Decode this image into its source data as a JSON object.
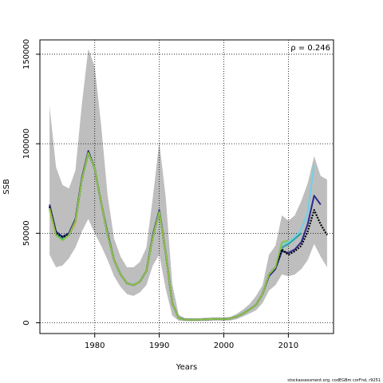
{
  "chart_data": {
    "type": "line",
    "xlabel": "Years",
    "ylabel": "SSB",
    "xlim": [
      1971.5,
      2017
    ],
    "ylim": [
      -6000,
      158000
    ],
    "x_ticks": [
      1980,
      1990,
      2000,
      2010
    ],
    "y_ticks": [
      0,
      50000,
      100000,
      150000
    ],
    "grid": "dotted",
    "annotation": "ρ = 0.246",
    "annotation_position": "top-right",
    "credit": "stockassessment.org, codEGBm corFnd, r9251",
    "band": {
      "color": "#bebebe",
      "years": [
        1973,
        1974,
        1975,
        1976,
        1977,
        1978,
        1979,
        1980,
        1981,
        1982,
        1983,
        1984,
        1985,
        1986,
        1987,
        1988,
        1989,
        1990,
        1991,
        1992,
        1993,
        1994,
        1995,
        1996,
        1997,
        1998,
        1999,
        2000,
        2001,
        2002,
        2003,
        2004,
        2005,
        2006,
        2007,
        2008,
        2009,
        2010,
        2011,
        2012,
        2013,
        2014,
        2015,
        2016
      ],
      "upper": [
        121000,
        87000,
        77000,
        75000,
        85000,
        122000,
        153000,
        143000,
        110000,
        71000,
        47000,
        37000,
        31000,
        31000,
        34000,
        42000,
        70000,
        101000,
        70000,
        22000,
        4500,
        2600,
        2600,
        2600,
        2800,
        3000,
        3000,
        3000,
        3300,
        5000,
        7500,
        10500,
        15000,
        21000,
        38000,
        43000,
        60000,
        57000,
        60000,
        68000,
        78000,
        93000,
        82000,
        80000
      ],
      "lower": [
        38000,
        31000,
        32000,
        36000,
        42000,
        51000,
        58000,
        50000,
        43000,
        35000,
        26000,
        20000,
        16000,
        15000,
        17000,
        21000,
        32000,
        38000,
        19000,
        4000,
        1200,
        900,
        900,
        900,
        1000,
        1100,
        1200,
        1100,
        1300,
        2000,
        3500,
        5200,
        7000,
        11000,
        18000,
        21000,
        27000,
        26000,
        27000,
        30000,
        35000,
        44000,
        37000,
        31000
      ]
    },
    "series": [
      {
        "color": "#ffa500",
        "x": [
          1973,
          1974,
          1975,
          1976,
          1977,
          1978,
          1979,
          1980,
          1981,
          1982,
          1983,
          1984,
          1985,
          1986,
          1987,
          1988,
          1989,
          1990,
          1991,
          1992,
          1993,
          1994,
          1995,
          1996,
          1997,
          1998,
          1999,
          2000,
          2001,
          2002,
          2003,
          2004,
          2005,
          2006,
          2007,
          2008,
          2009,
          2010,
          2011
        ],
        "y": [
          63000,
          49000,
          47000,
          49000,
          56000,
          80000,
          95000,
          86000,
          67000,
          49000,
          35000,
          27000,
          22000,
          21000,
          23000,
          29000,
          48000,
          62000,
          39000,
          11000,
          2600,
          1700,
          1700,
          1700,
          1900,
          2000,
          2100,
          2000,
          2400,
          3500,
          5200,
          7500,
          10000,
          16000,
          27000,
          31000,
          44000,
          45000,
          48000
        ]
      },
      {
        "color": "#22a0a0",
        "x": [
          1973,
          1974,
          1975,
          1976,
          1977,
          1978,
          1979,
          1980,
          1981,
          1982,
          1983,
          1984,
          1985,
          1986,
          1987,
          1988,
          1989,
          1990,
          1991,
          1992,
          1993,
          1994,
          1995,
          1996,
          1997,
          1998,
          1999,
          2000,
          2001,
          2002,
          2003,
          2004,
          2005,
          2006,
          2007,
          2008,
          2009,
          2010,
          2011,
          2012
        ],
        "y": [
          64000,
          50000,
          47000,
          49000,
          57000,
          80000,
          95000,
          86000,
          67000,
          49000,
          35000,
          27000,
          22000,
          21000,
          23000,
          29000,
          48000,
          62000,
          39000,
          11000,
          2600,
          1700,
          1700,
          1700,
          1900,
          2000,
          2100,
          2000,
          2400,
          3500,
          5200,
          7500,
          10000,
          16000,
          27000,
          31000,
          42000,
          44000,
          47000,
          50000
        ]
      },
      {
        "color": "#6fd0e8",
        "x": [
          1973,
          1974,
          1975,
          1976,
          1977,
          1978,
          1979,
          1980,
          1981,
          1982,
          1983,
          1984,
          1985,
          1986,
          1987,
          1988,
          1989,
          1990,
          1991,
          1992,
          1993,
          1994,
          1995,
          1996,
          1997,
          1998,
          1999,
          2000,
          2001,
          2002,
          2003,
          2004,
          2005,
          2006,
          2007,
          2008,
          2009,
          2010,
          2011,
          2012,
          2013,
          2014
        ],
        "y": [
          65000,
          50000,
          48000,
          50000,
          57000,
          80000,
          96000,
          86000,
          67000,
          49000,
          35000,
          27000,
          22000,
          21000,
          23000,
          29000,
          48000,
          62000,
          39000,
          11000,
          2600,
          1700,
          1700,
          1700,
          1900,
          2000,
          2100,
          2000,
          2400,
          3500,
          5200,
          7500,
          10000,
          16000,
          27000,
          31000,
          44000,
          45000,
          48000,
          52000,
          62000,
          88000
        ]
      },
      {
        "color": "#2b2a8c",
        "x": [
          1973,
          1974,
          1975,
          1976,
          1977,
          1978,
          1979,
          1980,
          1981,
          1982,
          1983,
          1984,
          1985,
          1986,
          1987,
          1988,
          1989,
          1990,
          1991,
          1992,
          1993,
          1994,
          1995,
          1996,
          1997,
          1998,
          1999,
          2000,
          2001,
          2002,
          2003,
          2004,
          2005,
          2006,
          2007,
          2008,
          2009,
          2010,
          2011,
          2012,
          2013,
          2014,
          2015
        ],
        "y": [
          66000,
          51000,
          48000,
          50000,
          58000,
          81000,
          96000,
          86000,
          67000,
          50000,
          35000,
          27000,
          22000,
          21000,
          23000,
          29000,
          49000,
          63000,
          39000,
          11000,
          2700,
          1800,
          1700,
          1700,
          1900,
          2000,
          2100,
          2000,
          2400,
          3500,
          5200,
          7500,
          10000,
          16000,
          26000,
          30000,
          40000,
          39000,
          41000,
          45000,
          55000,
          71000,
          66000
        ]
      },
      {
        "color": "#000000",
        "dashed": true,
        "x": [
          1973,
          1974,
          1975,
          1976,
          1977,
          1978,
          1979,
          1980,
          1981,
          1982,
          1983,
          1984,
          1985,
          1986,
          1987,
          1988,
          1989,
          1990,
          1991,
          1992,
          1993,
          1994,
          1995,
          1996,
          1997,
          1998,
          1999,
          2000,
          2001,
          2002,
          2003,
          2004,
          2005,
          2006,
          2007,
          2008,
          2009,
          2010,
          2011,
          2012,
          2013,
          2014,
          2015,
          2016
        ],
        "y": [
          65000,
          50000,
          48000,
          49000,
          57000,
          80000,
          95000,
          86000,
          67000,
          49000,
          35000,
          27000,
          22000,
          21000,
          23000,
          29000,
          48000,
          62000,
          39000,
          11000,
          2600,
          1700,
          1700,
          1700,
          1900,
          2000,
          2100,
          2000,
          2400,
          3500,
          5200,
          7500,
          10000,
          16000,
          27000,
          31000,
          41000,
          38000,
          40000,
          43000,
          51000,
          63000,
          55000,
          49000
        ]
      },
      {
        "color": "#8bc34a",
        "x": [
          1973,
          1974,
          1975,
          1976,
          1977,
          1978,
          1979,
          1980,
          1981,
          1982,
          1983,
          1984,
          1985,
          1986,
          1987,
          1988,
          1989,
          1990,
          1991,
          1992,
          1993,
          1994,
          1995,
          1996,
          1997,
          1998,
          1999,
          2000,
          2001,
          2002,
          2003,
          2004,
          2005,
          2006,
          2007,
          2008,
          2009,
          2010
        ],
        "y": [
          64000,
          49000,
          46000,
          49000,
          57000,
          80000,
          95000,
          86000,
          67000,
          49000,
          35000,
          27000,
          22000,
          21000,
          23000,
          29000,
          48000,
          62000,
          39000,
          11000,
          2600,
          1700,
          1700,
          1700,
          1900,
          2000,
          2100,
          2000,
          2400,
          3500,
          5200,
          7500,
          10000,
          16000,
          27000,
          31000,
          45000,
          46000
        ]
      }
    ]
  }
}
